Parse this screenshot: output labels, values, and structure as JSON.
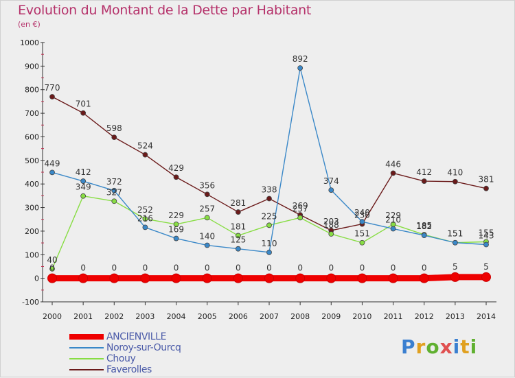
{
  "header": {
    "title": "Evolution du Montant de la Dette par Habitant",
    "unit": "(en €)"
  },
  "logo": {
    "text": "Proxiti"
  },
  "chart_data": {
    "type": "line",
    "title": "Evolution du Montant de la Dette par Habitant",
    "subtitle": "(en €)",
    "x": [
      "2000",
      "2001",
      "2002",
      "2003",
      "2004",
      "2005",
      "2006",
      "2007",
      "2008",
      "2009",
      "2010",
      "2011",
      "2012",
      "2013",
      "2014"
    ],
    "ylim": [
      -100,
      1000
    ],
    "yticks": [
      -100,
      0,
      100,
      200,
      300,
      400,
      500,
      600,
      700,
      800,
      900,
      1000
    ],
    "grid": false,
    "legend": "bottom-left",
    "series": [
      {
        "name": "ANCIENVILLE",
        "color": "#ee0000",
        "values": [
          0,
          0,
          0,
          0,
          0,
          0,
          0,
          0,
          0,
          0,
          0,
          0,
          0,
          5,
          5
        ],
        "labels": [
          "0",
          "0",
          "0",
          "0",
          "0",
          "0",
          "0",
          "0",
          "0",
          "0",
          "0",
          "0",
          "0",
          "5",
          "5"
        ]
      },
      {
        "name": "Noroy-sur-Ourcq",
        "color": "#3a88c8",
        "values": [
          449,
          412,
          372,
          216,
          169,
          140,
          125,
          110,
          892,
          374,
          240,
          210,
          182,
          151,
          143
        ],
        "labels": [
          "449",
          "412",
          "372",
          "216",
          "169",
          "140",
          "125",
          "110",
          "892",
          "374",
          "240",
          "210",
          "182",
          "151",
          "143"
        ]
      },
      {
        "name": "Chouy",
        "color": "#88dd44",
        "values": [
          40,
          349,
          327,
          252,
          229,
          257,
          181,
          225,
          257,
          188,
          151,
          229,
          185,
          151,
          155
        ],
        "labels": [
          "40",
          "349",
          "327",
          "252",
          "229",
          "257",
          "181",
          "225",
          "257",
          "188",
          "151",
          "229",
          "185",
          "151",
          "155"
        ]
      },
      {
        "name": "Faverolles",
        "color": "#6b1a1a",
        "values": [
          770,
          701,
          598,
          524,
          429,
          356,
          281,
          338,
          269,
          203,
          230,
          446,
          412,
          410,
          381
        ],
        "labels": [
          "770",
          "701",
          "598",
          "524",
          "429",
          "356",
          "281",
          "338",
          "269",
          "203",
          "230",
          "446",
          "412",
          "410",
          "381"
        ]
      }
    ]
  }
}
